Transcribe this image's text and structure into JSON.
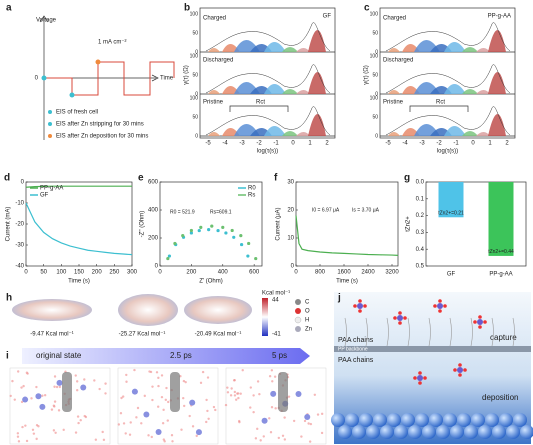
{
  "panels": {
    "a": {
      "label": "a",
      "y_axis": "Voltage",
      "x_axis": "Time",
      "current": "1 mA cm⁻²",
      "origin": 0,
      "legend": [
        "EIS of fresh cell",
        "EIS after Zn stripping for 30 mins",
        "EIS after Zn deposition for 30 mins"
      ]
    },
    "b": {
      "label": "b",
      "tag": "GF",
      "states": [
        "Charged",
        "Discharged",
        "Pristine"
      ],
      "ylabel": "γ(τ) (Ω)",
      "xlabel": "log(τ(s))",
      "yticks": [
        100,
        50,
        0
      ],
      "xticks": [
        -5,
        -4,
        -3,
        -2,
        -1,
        0,
        1,
        2
      ],
      "annotation": "Rct"
    },
    "c": {
      "label": "c",
      "tag": "PP-g-AA",
      "states": [
        "Charged",
        "Discharged",
        "Pristine"
      ],
      "ylabel": "γ(τ) (Ω)",
      "xlabel": "log(τ(s))",
      "yticks": [
        100,
        50,
        0
      ],
      "xticks": [
        -5,
        -4,
        -3,
        -2,
        -1,
        0,
        1,
        2
      ],
      "annotation": "Rct"
    },
    "d": {
      "label": "d"
    },
    "e": {
      "label": "e"
    },
    "f": {
      "label": "f"
    },
    "g": {
      "label": "g"
    },
    "h": {
      "label": "h",
      "energies": [
        "-9.47 Kcal mol⁻¹",
        "-25.27 Kcal mol⁻¹",
        "-20.49 Kcal mol⁻¹"
      ],
      "scale_unit": "Kcal mol⁻¹",
      "scale_max": 44,
      "scale_min": -41,
      "atoms": [
        "C",
        "O",
        "H",
        "Zn"
      ]
    },
    "i": {
      "label": "i",
      "stages": [
        "original state",
        "2.5 ps",
        "5 ps"
      ]
    },
    "j": {
      "label": "j",
      "top": "capture",
      "chains_top": "PAA chains",
      "backbone": "PP backbone",
      "chains_bottom": "PAA chains",
      "bottom": "deposition"
    }
  },
  "chart_data": [
    {
      "type": "line",
      "xlabel": "Time (s)",
      "ylabel": "Current (mA)",
      "legend": "upper left",
      "x": [
        0,
        25,
        50,
        75,
        100,
        125,
        150,
        175,
        200,
        225,
        250,
        275,
        300
      ],
      "series": [
        {
          "name": "PP-g-AA",
          "color": "#4caf50",
          "values": [
            -2.5,
            -2.2,
            -2.1,
            -2,
            -2,
            -2,
            -2,
            -2,
            -2,
            -2,
            -2,
            -2,
            -2
          ]
        },
        {
          "name": "GF",
          "color": "#3cbfd0",
          "values": [
            -10,
            -19,
            -24,
            -27,
            -29,
            -30.5,
            -31.5,
            -32.5,
            -33,
            -33.5,
            -34,
            -34.3,
            -34.6
          ]
        }
      ],
      "xlim": [
        0,
        300
      ],
      "xticks": [
        0,
        50,
        100,
        150,
        200,
        250,
        300
      ],
      "ylim": [
        -40,
        0
      ],
      "yticks": [
        0,
        -10,
        -20,
        -30,
        -40
      ]
    },
    {
      "type": "scatter",
      "xlabel": "Z' (Ohm)",
      "ylabel": "-Z'' (Ohm)",
      "legend": "upper right",
      "series": [
        {
          "name": "R0",
          "color": "#3cbfd0",
          "x": [
            60,
            100,
            150,
            200,
            250,
            310,
            370,
            420,
            470,
            520,
            560
          ],
          "values": [
            71,
            153,
            205,
            236,
            253,
            260,
            253,
            236,
            205,
            153,
            71
          ]
        },
        {
          "name": "Rs",
          "color": "#6cc070",
          "x": [
            50,
            95,
            145,
            200,
            260,
            330,
            400,
            460,
            515,
            565,
            610
          ],
          "values": [
            53,
            161,
            217,
            254,
            276,
            285,
            276,
            254,
            217,
            161,
            53
          ]
        }
      ],
      "annotations": [
        "R0 = 521.9",
        "Rs=609.1"
      ],
      "xlim": [
        0,
        650
      ],
      "xticks": [
        0,
        200,
        400,
        600
      ],
      "ylim": [
        0,
        600
      ],
      "yticks": [
        0,
        200,
        400,
        600
      ]
    },
    {
      "type": "line",
      "xlabel": "Time (s)",
      "ylabel": "Current (μA)",
      "x": [
        0,
        100,
        200,
        400,
        800,
        1200,
        1600,
        2000,
        2400,
        2800,
        3200,
        3400
      ],
      "series": [
        {
          "name": "Current",
          "color": "#4caf50",
          "values": [
            18,
            8,
            6,
            5.5,
            5,
            4.7,
            4.5,
            4.3,
            4.1,
            4,
            3.9,
            3.8
          ]
        }
      ],
      "annotations": [
        "I0 = 6.97 μA",
        "Is = 3.70 μA"
      ],
      "xlim": [
        0,
        3400
      ],
      "xticks": [
        0,
        800,
        1600,
        2400,
        3200
      ],
      "ylim": [
        0,
        30
      ],
      "yticks": [
        0,
        10,
        20,
        30
      ]
    },
    {
      "type": "bar",
      "ylabel": "tZn2+",
      "categories": [
        "GF",
        "PP-g-AA"
      ],
      "values": [
        0.21,
        0.44
      ],
      "value_labels": [
        "tZn2+=0.21",
        "tZn2+=0.44"
      ],
      "colors": [
        "#4fc3e8",
        "#3cc45a"
      ],
      "y_inverted": true,
      "ylim": [
        0,
        0.5
      ],
      "yticks": [
        {
          "value": 0,
          "label": "0.0"
        },
        0.1,
        0.2,
        0.3,
        0.4,
        0.5
      ]
    }
  ]
}
